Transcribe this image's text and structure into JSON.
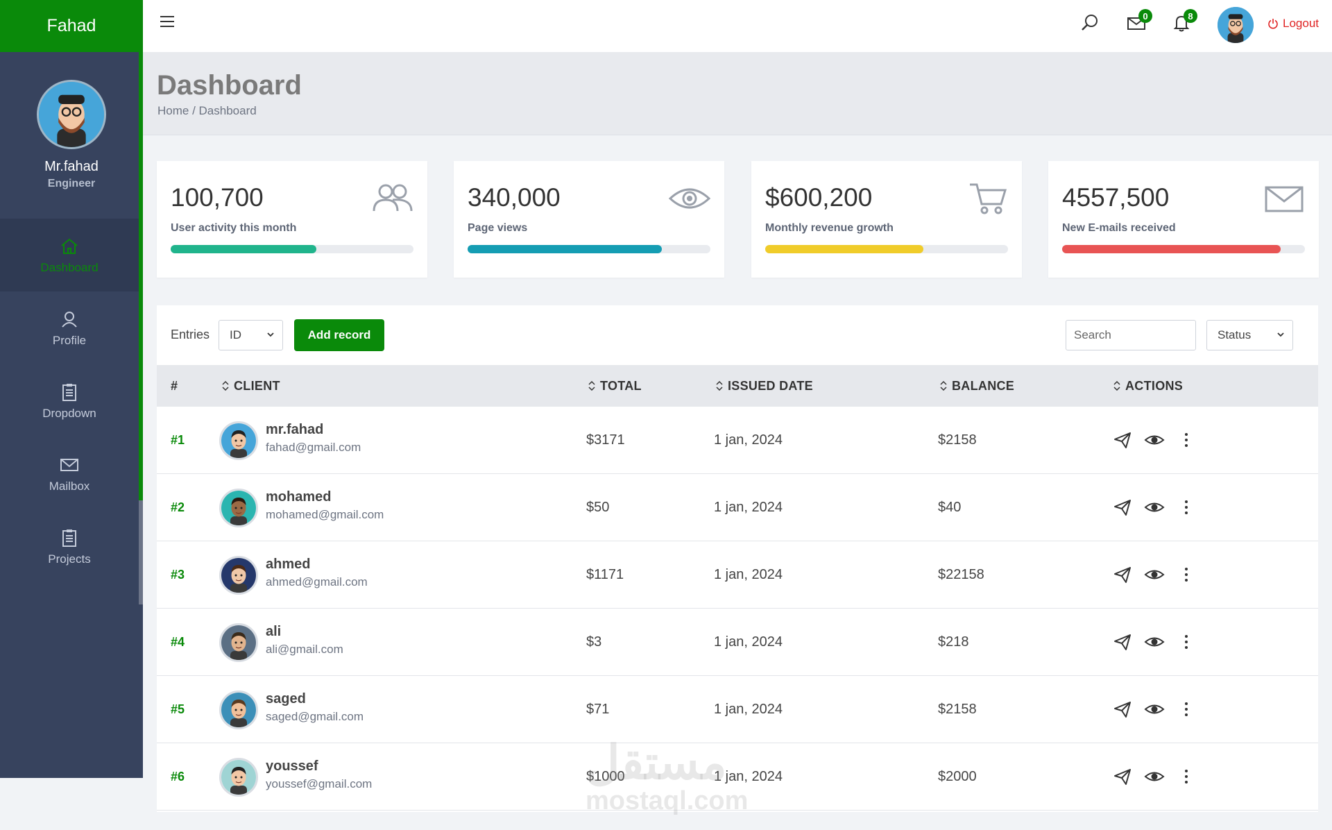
{
  "brand": "Fahad",
  "sidebar": {
    "name": "Mr.fahad",
    "role": "Engineer",
    "items": [
      {
        "label": "Dashboard",
        "icon": "home-icon"
      },
      {
        "label": "Profile",
        "icon": "user-icon"
      },
      {
        "label": "Dropdown",
        "icon": "clipboard-icon"
      },
      {
        "label": "Mailbox",
        "icon": "mail-icon"
      },
      {
        "label": "Projects",
        "icon": "clipboard-icon"
      }
    ]
  },
  "topbar": {
    "mail_count": "0",
    "notification_count": "8",
    "logout_label": "Logout"
  },
  "header": {
    "title": "Dashboard",
    "breadcrumb": "Home / Dashboard"
  },
  "stats": [
    {
      "value": "100,700",
      "label": "User activity this month",
      "progress": 0.6,
      "color": "#20b48c",
      "icon": "users-icon"
    },
    {
      "value": "340,000",
      "label": "Page views",
      "progress": 0.8,
      "color": "#159db3",
      "icon": "eye-icon"
    },
    {
      "value": "$600,200",
      "label": "Monthly revenue growth",
      "progress": 0.65,
      "color": "#f0cc2a",
      "icon": "cart-icon"
    },
    {
      "value": "4557,500",
      "label": "New E-mails received",
      "progress": 0.9,
      "color": "#e85454",
      "icon": "envelope-icon"
    }
  ],
  "toolbar": {
    "entries_label": "Entries",
    "entries_value": "ID",
    "add_label": "Add record",
    "search_placeholder": "Search",
    "status_value": "Status"
  },
  "table": {
    "columns": [
      "#",
      "CLIENT",
      "TOTAL",
      "ISSUED DATE",
      "BALANCE",
      "ACTIONS"
    ],
    "rows": [
      {
        "id": "#1",
        "name": "mr.fahad",
        "email": "fahad@gmail.com",
        "total": "$3171",
        "date": "1 jan, 2024",
        "balance": "$2158"
      },
      {
        "id": "#2",
        "name": "mohamed",
        "email": "mohamed@gmail.com",
        "total": "$50",
        "date": "1 jan, 2024",
        "balance": "$40"
      },
      {
        "id": "#3",
        "name": "ahmed",
        "email": "ahmed@gmail.com",
        "total": "$1171",
        "date": "1 jan, 2024",
        "balance": "$22158"
      },
      {
        "id": "#4",
        "name": "ali",
        "email": "ali@gmail.com",
        "total": "$3",
        "date": "1 jan, 2024",
        "balance": "$218"
      },
      {
        "id": "#5",
        "name": "saged",
        "email": "saged@gmail.com",
        "total": "$71",
        "date": "1 jan, 2024",
        "balance": "$2158"
      },
      {
        "id": "#6",
        "name": "youssef",
        "email": "youssef@gmail.com",
        "total": "$1000",
        "date": "1 jan, 2024",
        "balance": "$2000"
      }
    ]
  },
  "watermark": {
    "arabic": "مستقل",
    "latin": "mostaql.com"
  },
  "colors": {
    "brand": "#0a8a0a",
    "sidebar": "#37435e",
    "logout": "#e02424"
  }
}
